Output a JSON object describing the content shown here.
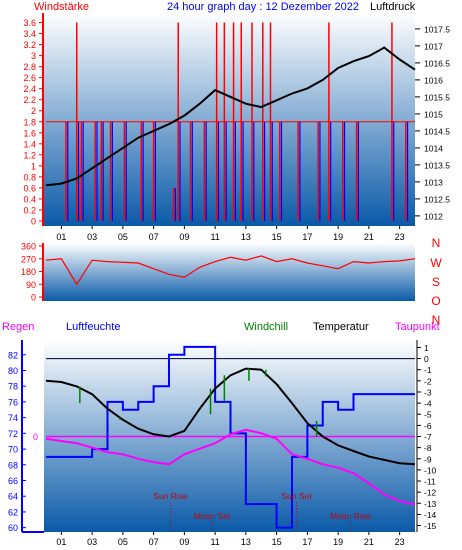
{
  "header": {
    "left_label": "Windstärke",
    "title": "24 hour graph day : 12 Dezember 2022",
    "right_label": "Luftdruck"
  },
  "colors": {
    "wind": "#ff0000",
    "wind_gust": "#0000ff",
    "pressure": "#000000",
    "humidity": "#0000ff",
    "temperature": "#000000",
    "dewpoint": "#ff00ff",
    "windchill": "#008000",
    "rain": "#ff00ff",
    "panel_gradient_top": "#ffffff",
    "panel_gradient_bottom": "#0a5aa8"
  },
  "x_ticks": [
    "01",
    "03",
    "05",
    "07",
    "09",
    "11",
    "13",
    "15",
    "17",
    "19",
    "21",
    "23"
  ],
  "chart_data": [
    {
      "type": "line",
      "name": "wind-pressure",
      "ylabel_left": "Windstärke",
      "ylabel_right": "Luftdruck",
      "left_ticks": [
        "3.6",
        "3.4",
        "3.2",
        "3",
        "2.8",
        "2.6",
        "2.4",
        "2.2",
        "2",
        "1.8",
        "1.6",
        "1.4",
        "1.2",
        "1",
        "0.8",
        "0.6",
        "0.4",
        "0.2",
        "0"
      ],
      "left_ylim": [
        0,
        3.7
      ],
      "right_ticks": [
        "1017.5",
        "1017",
        "1016.5",
        "1016",
        "1015.5",
        "1015",
        "1014.5",
        "1014",
        "1013.5",
        "1013",
        "1012.5",
        "1012"
      ],
      "right_ylim": [
        1011.85,
        1017.85
      ],
      "pressure_x": [
        0,
        1,
        2,
        3,
        4,
        5,
        6,
        7,
        8,
        9,
        10,
        11,
        12,
        13,
        14,
        15,
        16,
        17,
        18,
        19,
        20,
        21,
        22,
        23,
        24
      ],
      "pressure_y": [
        1012.9,
        1012.95,
        1013.1,
        1013.4,
        1013.7,
        1014.0,
        1014.3,
        1014.5,
        1014.7,
        1014.95,
        1015.3,
        1015.7,
        1015.5,
        1015.3,
        1015.2,
        1015.4,
        1015.6,
        1015.75,
        1016.0,
        1016.35,
        1016.55,
        1016.7,
        1016.95,
        1016.6,
        1016.3
      ],
      "wind_spikes_x": [
        1.3,
        2.0,
        2.3,
        3.2,
        3.6,
        4.2,
        5.1,
        6.2,
        7.0,
        8.3,
        8.6,
        9.4,
        10.3,
        11.1,
        11.6,
        12.2,
        12.7,
        13.4,
        14.1,
        14.6,
        15.2,
        16.4,
        17.7,
        18.4,
        19.3,
        20.2,
        22.5,
        23.4
      ],
      "wind_spikes_y": [
        1.8,
        3.6,
        1.8,
        1.8,
        1.8,
        1.8,
        1.8,
        1.8,
        1.8,
        0.6,
        3.6,
        1.8,
        1.8,
        3.6,
        3.6,
        3.6,
        3.6,
        3.6,
        3.6,
        3.6,
        1.8,
        1.8,
        1.8,
        3.6,
        1.8,
        1.8,
        3.6,
        1.8
      ]
    },
    {
      "type": "line",
      "name": "wind-direction",
      "ylabel_right": [
        "N",
        "W",
        "S",
        "O",
        "N"
      ],
      "left_ticks": [
        "360",
        "270",
        "180",
        "90",
        "0"
      ],
      "ylim": [
        0,
        360
      ],
      "x": [
        0,
        1,
        2,
        3,
        4,
        5,
        6,
        7,
        8,
        9,
        10,
        11,
        12,
        13,
        14,
        15,
        16,
        17,
        18,
        19,
        20,
        21,
        22,
        23,
        24
      ],
      "y": [
        260,
        270,
        90,
        260,
        250,
        245,
        240,
        200,
        160,
        140,
        210,
        250,
        280,
        260,
        290,
        250,
        270,
        240,
        220,
        200,
        250,
        240,
        250,
        255,
        270
      ]
    },
    {
      "type": "line",
      "name": "humidity-temperature",
      "labels": {
        "rain": "Regen",
        "humidity": "Luftfeuchte",
        "windchill": "Windchill",
        "temperature": "Temperatur",
        "dewpoint": "Taupunkt"
      },
      "left_ticks": [
        "82",
        "80",
        "78",
        "76",
        "74",
        "72",
        "70",
        "68",
        "66",
        "64",
        "62",
        "60"
      ],
      "left_ylim": [
        59.7,
        83.5
      ],
      "rain_tick": "0",
      "right_ticks": [
        "1",
        "0",
        "-1",
        "-2",
        "-3",
        "-4",
        "-5",
        "-6",
        "-7",
        "-8",
        "-9",
        "-10",
        "-11",
        "-12",
        "-13",
        "-14",
        "-15"
      ],
      "right_ylim": [
        -15.4,
        1.4
      ],
      "x": [
        0,
        1,
        2,
        3,
        4,
        5,
        6,
        7,
        8,
        9,
        10,
        11,
        12,
        13,
        14,
        15,
        16,
        17,
        18,
        19,
        20,
        21,
        22,
        23,
        24
      ],
      "humidity": [
        69,
        69,
        69,
        70,
        76,
        75,
        76,
        78,
        82,
        83,
        83,
        76,
        72,
        63,
        63,
        60,
        69,
        73,
        76,
        75,
        77,
        77,
        77,
        77,
        77
      ],
      "temperature": [
        -2,
        -2.1,
        -2.5,
        -3.2,
        -4.5,
        -5.5,
        -6.3,
        -6.8,
        -7,
        -6.5,
        -4.5,
        -2.7,
        -1.5,
        -0.9,
        -1,
        -2.3,
        -4,
        -5.8,
        -7,
        -7.8,
        -8.3,
        -8.8,
        -9.1,
        -9.4,
        -9.5
      ],
      "dewpoint": [
        -7.2,
        -7.4,
        -7.6,
        -8.0,
        -8.4,
        -8.6,
        -9.0,
        -9.3,
        -9.5,
        -8.6,
        -8.1,
        -7.6,
        -6.8,
        -6.4,
        -6.7,
        -7.2,
        -8.6,
        -9.0,
        -9.5,
        -9.8,
        -10.3,
        -11.2,
        -12.2,
        -12.8,
        -13.1
      ],
      "windchill_x": [
        2.2,
        4.8,
        10.7,
        11.6,
        13.2,
        14.3,
        15.1,
        17.6
      ],
      "windchill_y": [
        -4.0,
        -5.3,
        -5.0,
        -3.8,
        -2.0,
        -1.6,
        -2.4,
        -5.6
      ],
      "events": [
        {
          "label": "Sun Rise",
          "hour": 8.1,
          "row": 1
        },
        {
          "label": "Moon Set",
          "hour": 10.8,
          "row": 2
        },
        {
          "label": "Sun Set",
          "hour": 16.3,
          "row": 1
        },
        {
          "label": "Moon Rise",
          "hour": 19.8,
          "row": 2
        }
      ]
    }
  ]
}
